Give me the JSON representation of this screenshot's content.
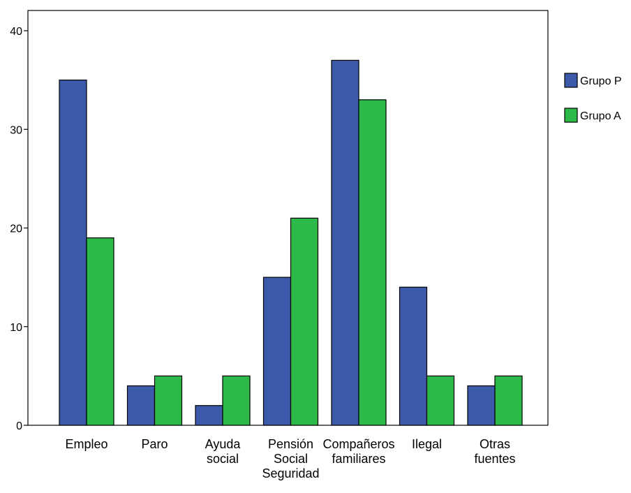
{
  "chart_data": {
    "type": "bar",
    "categories": [
      [
        "Empleo"
      ],
      [
        "Paro"
      ],
      [
        "Ayuda",
        "social"
      ],
      [
        "Pensión",
        "Social",
        "Seguridad"
      ],
      [
        "Compañeros",
        "familiares"
      ],
      [
        "Ilegal"
      ],
      [
        "Otras",
        "fuentes"
      ]
    ],
    "series": [
      {
        "name": "Grupo P",
        "values": [
          35,
          4,
          2,
          15,
          37,
          14,
          4
        ]
      },
      {
        "name": "Grupo A",
        "values": [
          19,
          5,
          5,
          21,
          33,
          5,
          5
        ]
      }
    ],
    "ylim": [
      0,
      40
    ],
    "yticks": [
      0,
      10,
      20,
      30,
      40
    ],
    "grid": false,
    "legend_position": "right",
    "colors": {
      "Grupo P": "#3c59aa",
      "Grupo A": "#2db84a"
    }
  }
}
